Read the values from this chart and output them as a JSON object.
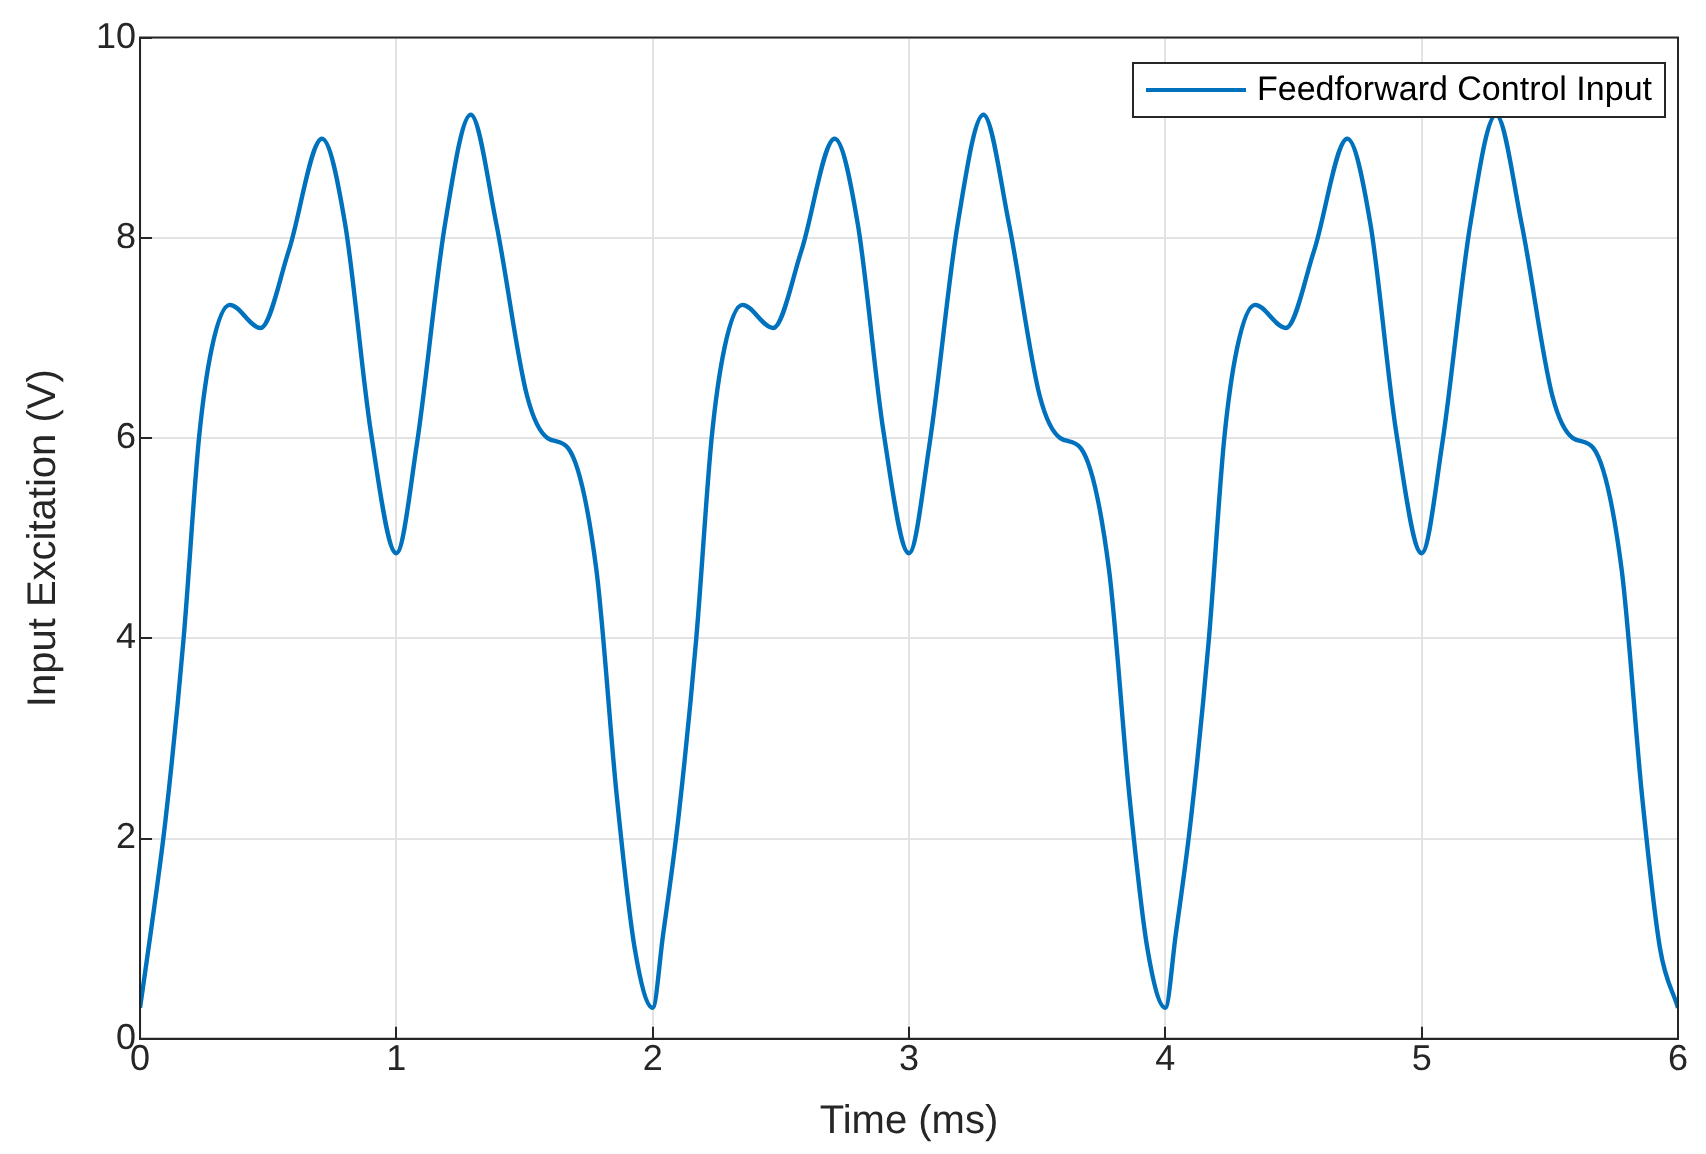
{
  "chart_data": {
    "type": "line",
    "xlabel": "Time (ms)",
    "ylabel": "Input Excitation (V)",
    "xlim": [
      0,
      6
    ],
    "xticks": [
      0,
      1,
      2,
      3,
      4,
      5,
      6
    ],
    "ylim": [
      0,
      10
    ],
    "yticks": [
      0,
      2,
      4,
      6,
      8,
      10
    ],
    "grid": true,
    "legend": "top right",
    "marker": "none",
    "line_style": "solid",
    "x": [
      0,
      0.04,
      0.1,
      0.17,
      0.23,
      0.28,
      0.35,
      0.47,
      0.58,
      0.71,
      0.8,
      0.9,
      1,
      1.08,
      1.19,
      1.29,
      1.39,
      1.51,
      1.59,
      1.67,
      1.78,
      1.86,
      1.93,
      2,
      2.04,
      2.1,
      2.17,
      2.23,
      2.28,
      2.35,
      2.47,
      2.58,
      2.71,
      2.8,
      2.9,
      3,
      3.08,
      3.19,
      3.29,
      3.39,
      3.51,
      3.59,
      3.67,
      3.78,
      3.86,
      3.93,
      4,
      4.04,
      4.1,
      4.17,
      4.23,
      4.28,
      4.35,
      4.47,
      4.58,
      4.71,
      4.8,
      4.9,
      5,
      5.08,
      5.19,
      5.29,
      5.39,
      5.51,
      5.59,
      5.67,
      5.78,
      5.86,
      5.93,
      6
    ],
    "series": [
      {
        "name": "Feedforward Control Input",
        "color": "#0072bd",
        "values": [
          0.31,
          1.03,
          2.2,
          4.0,
          6.0,
          6.9,
          7.33,
          7.1,
          7.87,
          8.99,
          8.14,
          6.07,
          4.85,
          5.94,
          8.14,
          9.23,
          8.14,
          6.42,
          6.0,
          5.9,
          4.69,
          2.42,
          0.9,
          0.31,
          1.03,
          2.2,
          4.0,
          6.0,
          6.9,
          7.33,
          7.1,
          7.87,
          8.99,
          8.14,
          6.07,
          4.85,
          5.94,
          8.14,
          9.23,
          8.14,
          6.42,
          6.0,
          5.9,
          4.69,
          2.42,
          0.9,
          0.31,
          1.03,
          2.2,
          4.0,
          6.0,
          6.9,
          7.33,
          7.1,
          7.87,
          8.99,
          8.14,
          6.07,
          4.85,
          5.94,
          8.14,
          9.23,
          8.14,
          6.42,
          6.0,
          5.9,
          4.69,
          2.42,
          0.9,
          0.31
        ]
      }
    ]
  }
}
